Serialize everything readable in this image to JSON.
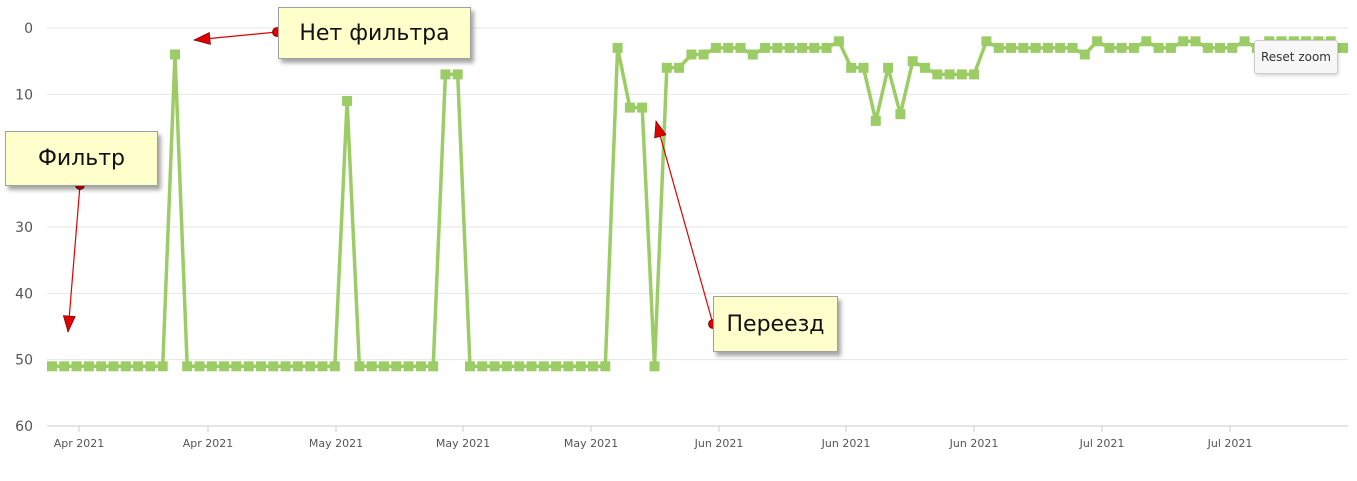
{
  "ui": {
    "reset_zoom_label": "Reset zoom"
  },
  "annotations": [
    {
      "id": "no-filter",
      "text": "Нет фильтра"
    },
    {
      "id": "filter",
      "text": "Фильтр"
    },
    {
      "id": "move",
      "text": "Переезд"
    }
  ],
  "colors": {
    "series": "#9ccc65",
    "grid": "#e6e6e6",
    "arrow": "#e00000",
    "annotation_bg": "#ffffcc"
  },
  "chart_data": {
    "type": "line",
    "y_reversed": true,
    "ylim": [
      0,
      60
    ],
    "y_ticks": [
      0,
      10,
      30,
      40,
      50,
      60
    ],
    "grid": true,
    "x_tick_labels": [
      "Apr 2021",
      "Apr 2021",
      "May 2021",
      "May 2021",
      "May 2021",
      "Jun 2021",
      "Jun 2021",
      "Jun 2021",
      "Jul 2021",
      "Jul 2021"
    ],
    "series": [
      {
        "values": [
          51,
          51,
          51,
          51,
          51,
          51,
          51,
          51,
          51,
          51,
          4,
          51,
          51,
          51,
          51,
          51,
          51,
          51,
          51,
          51,
          51,
          51,
          51,
          51,
          11,
          51,
          51,
          51,
          51,
          51,
          51,
          51,
          7,
          7,
          51,
          51,
          51,
          51,
          51,
          51,
          51,
          51,
          51,
          51,
          51,
          51,
          3,
          12,
          12,
          51,
          6,
          6,
          4,
          4,
          3,
          3,
          3,
          4,
          3,
          3,
          3,
          3,
          3,
          3,
          2,
          6,
          6,
          14,
          6,
          13,
          5,
          6,
          7,
          7,
          7,
          7,
          2,
          3,
          3,
          3,
          3,
          3,
          3,
          3,
          4,
          2,
          3,
          3,
          3,
          2,
          3,
          3,
          2,
          2,
          3,
          3,
          3,
          2,
          3,
          2,
          2,
          2,
          2,
          2,
          2,
          3
        ]
      }
    ]
  }
}
